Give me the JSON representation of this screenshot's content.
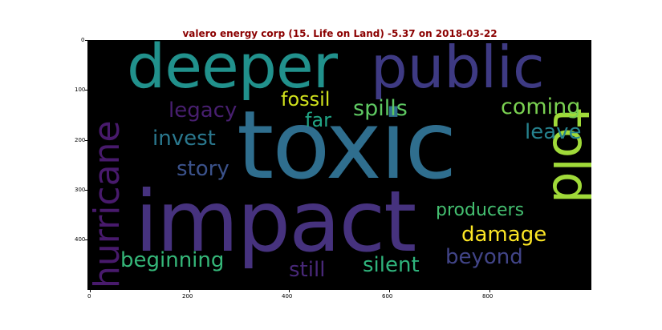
{
  "figure": {
    "title": "valero energy corp (15. Life on Land) -5.37 on 2018-03-22",
    "x_ticks": [
      "0",
      "200",
      "400",
      "600",
      "800"
    ],
    "y_ticks": [
      "0",
      "100",
      "200",
      "300",
      "400"
    ]
  },
  "wordcloud": {
    "words": [
      {
        "text": "toxic",
        "color": "#2f6e8e",
        "orientation": "horizontal"
      },
      {
        "text": "impact",
        "color": "#46327e",
        "orientation": "horizontal"
      },
      {
        "text": "deeper",
        "color": "#21918c",
        "orientation": "horizontal"
      },
      {
        "text": "public",
        "color": "#3e3a83",
        "orientation": "horizontal"
      },
      {
        "text": "hurricane",
        "color": "#481a6c",
        "orientation": "vertical"
      },
      {
        "text": "told",
        "color": "#a0da39",
        "orientation": "vertical"
      },
      {
        "text": "legacy",
        "color": "#481f70",
        "orientation": "horizontal"
      },
      {
        "text": "fossil",
        "color": "#d0e11c",
        "orientation": "horizontal"
      },
      {
        "text": "far",
        "color": "#21a585",
        "orientation": "horizontal"
      },
      {
        "text": "spills",
        "color": "#5ec962",
        "orientation": "horizontal"
      },
      {
        "text": "coming",
        "color": "#7ad151",
        "orientation": "horizontal"
      },
      {
        "text": "leave",
        "color": "#26828e",
        "orientation": "horizontal"
      },
      {
        "text": "invest",
        "color": "#2a788e",
        "orientation": "horizontal"
      },
      {
        "text": "story",
        "color": "#3b528b",
        "orientation": "horizontal"
      },
      {
        "text": "producers",
        "color": "#44bf70",
        "orientation": "horizontal"
      },
      {
        "text": "damage",
        "color": "#fde725",
        "orientation": "horizontal"
      },
      {
        "text": "beginning",
        "color": "#35b779",
        "orientation": "horizontal"
      },
      {
        "text": "beyond",
        "color": "#414487",
        "orientation": "horizontal"
      },
      {
        "text": "silent",
        "color": "#2fb47c",
        "orientation": "horizontal"
      },
      {
        "text": "still",
        "color": "#482878",
        "orientation": "horizontal"
      }
    ]
  }
}
